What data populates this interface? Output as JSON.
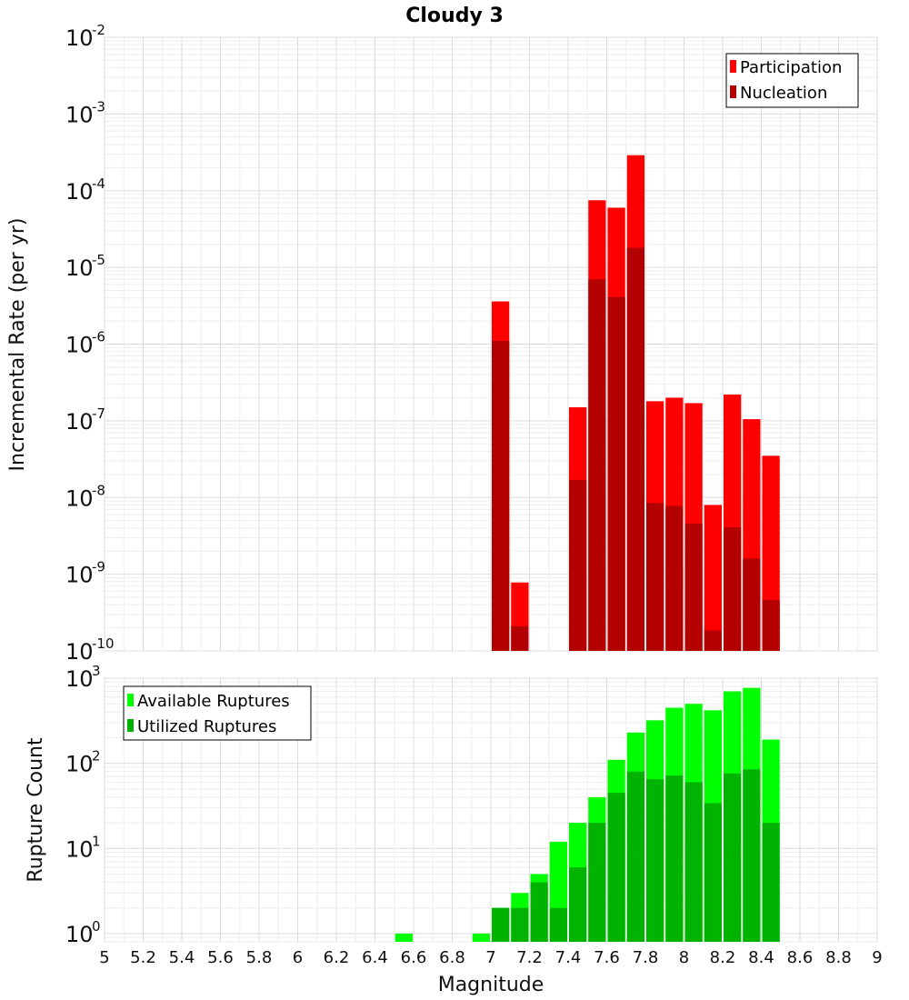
{
  "chart_data": [
    {
      "type": "bar",
      "panel": "top",
      "title": "Cloudy 3",
      "ylabel": "Incremental Rate (per yr)",
      "yscale": "log",
      "ylim": [
        1e-10,
        0.01
      ],
      "ytick_base": "10",
      "ytick_exponents": [
        "-2",
        "-3",
        "-4",
        "-5",
        "-6",
        "-7",
        "-8",
        "-9",
        "-10"
      ],
      "grid": true,
      "legend": "top-right",
      "bin_width": 0.1,
      "series": [
        {
          "name": "Participation",
          "color": "#ff0000",
          "x": [
            7.05,
            7.15,
            7.45,
            7.55,
            7.65,
            7.75,
            7.85,
            7.95,
            8.05,
            8.15,
            8.25,
            8.35,
            8.45
          ],
          "values": [
            3.6e-06,
            7.8e-10,
            1.5e-07,
            7.5e-05,
            6e-05,
            0.00029,
            1.8e-07,
            2e-07,
            1.7e-07,
            8e-09,
            2.2e-07,
            1.05e-07,
            3.5e-08
          ]
        },
        {
          "name": "Nucleation",
          "color": "#b30000",
          "x": [
            7.05,
            7.15,
            7.45,
            7.55,
            7.65,
            7.75,
            7.85,
            7.95,
            8.05,
            8.15,
            8.25,
            8.35,
            8.45
          ],
          "values": [
            1.1e-06,
            2.1e-10,
            1.7e-08,
            7e-06,
            4.1e-06,
            1.8e-05,
            8.5e-09,
            7.8e-09,
            4.6e-09,
            1.85e-10,
            4.1e-09,
            1.6e-09,
            4.6e-10
          ]
        }
      ]
    },
    {
      "type": "bar",
      "panel": "bottom",
      "xlabel": "Magnitude",
      "ylabel": "Rupture Count",
      "yscale": "log",
      "ylim": [
        0.8,
        1000
      ],
      "xlim": [
        5,
        9
      ],
      "xticks": [
        "5",
        "5.2",
        "5.4",
        "5.6",
        "5.8",
        "6",
        "6.2",
        "6.4",
        "6.6",
        "6.8",
        "7",
        "7.2",
        "7.4",
        "7.6",
        "7.8",
        "8",
        "8.2",
        "8.4",
        "8.6",
        "8.8",
        "9"
      ],
      "ytick_base": "10",
      "ytick_exponents": [
        "3",
        "2",
        "1",
        "0"
      ],
      "grid": true,
      "legend": "top-left",
      "bin_width": 0.1,
      "series": [
        {
          "name": "Available Ruptures",
          "color": "#00ff00",
          "x": [
            6.55,
            6.95,
            7.05,
            7.15,
            7.25,
            7.35,
            7.45,
            7.55,
            7.65,
            7.75,
            7.85,
            7.95,
            8.05,
            8.15,
            8.25,
            8.35,
            8.45
          ],
          "values": [
            1,
            1,
            2,
            3,
            5,
            12,
            20,
            40,
            110,
            230,
            320,
            450,
            500,
            420,
            700,
            770,
            190
          ]
        },
        {
          "name": "Utilized Ruptures",
          "color": "#00b300",
          "x": [
            7.05,
            7.15,
            7.25,
            7.35,
            7.45,
            7.55,
            7.65,
            7.75,
            7.85,
            7.95,
            8.05,
            8.15,
            8.25,
            8.35,
            8.45
          ],
          "values": [
            2,
            2,
            4,
            2,
            6,
            20,
            45,
            80,
            65,
            72,
            60,
            34,
            76,
            85,
            20
          ]
        }
      ]
    }
  ]
}
